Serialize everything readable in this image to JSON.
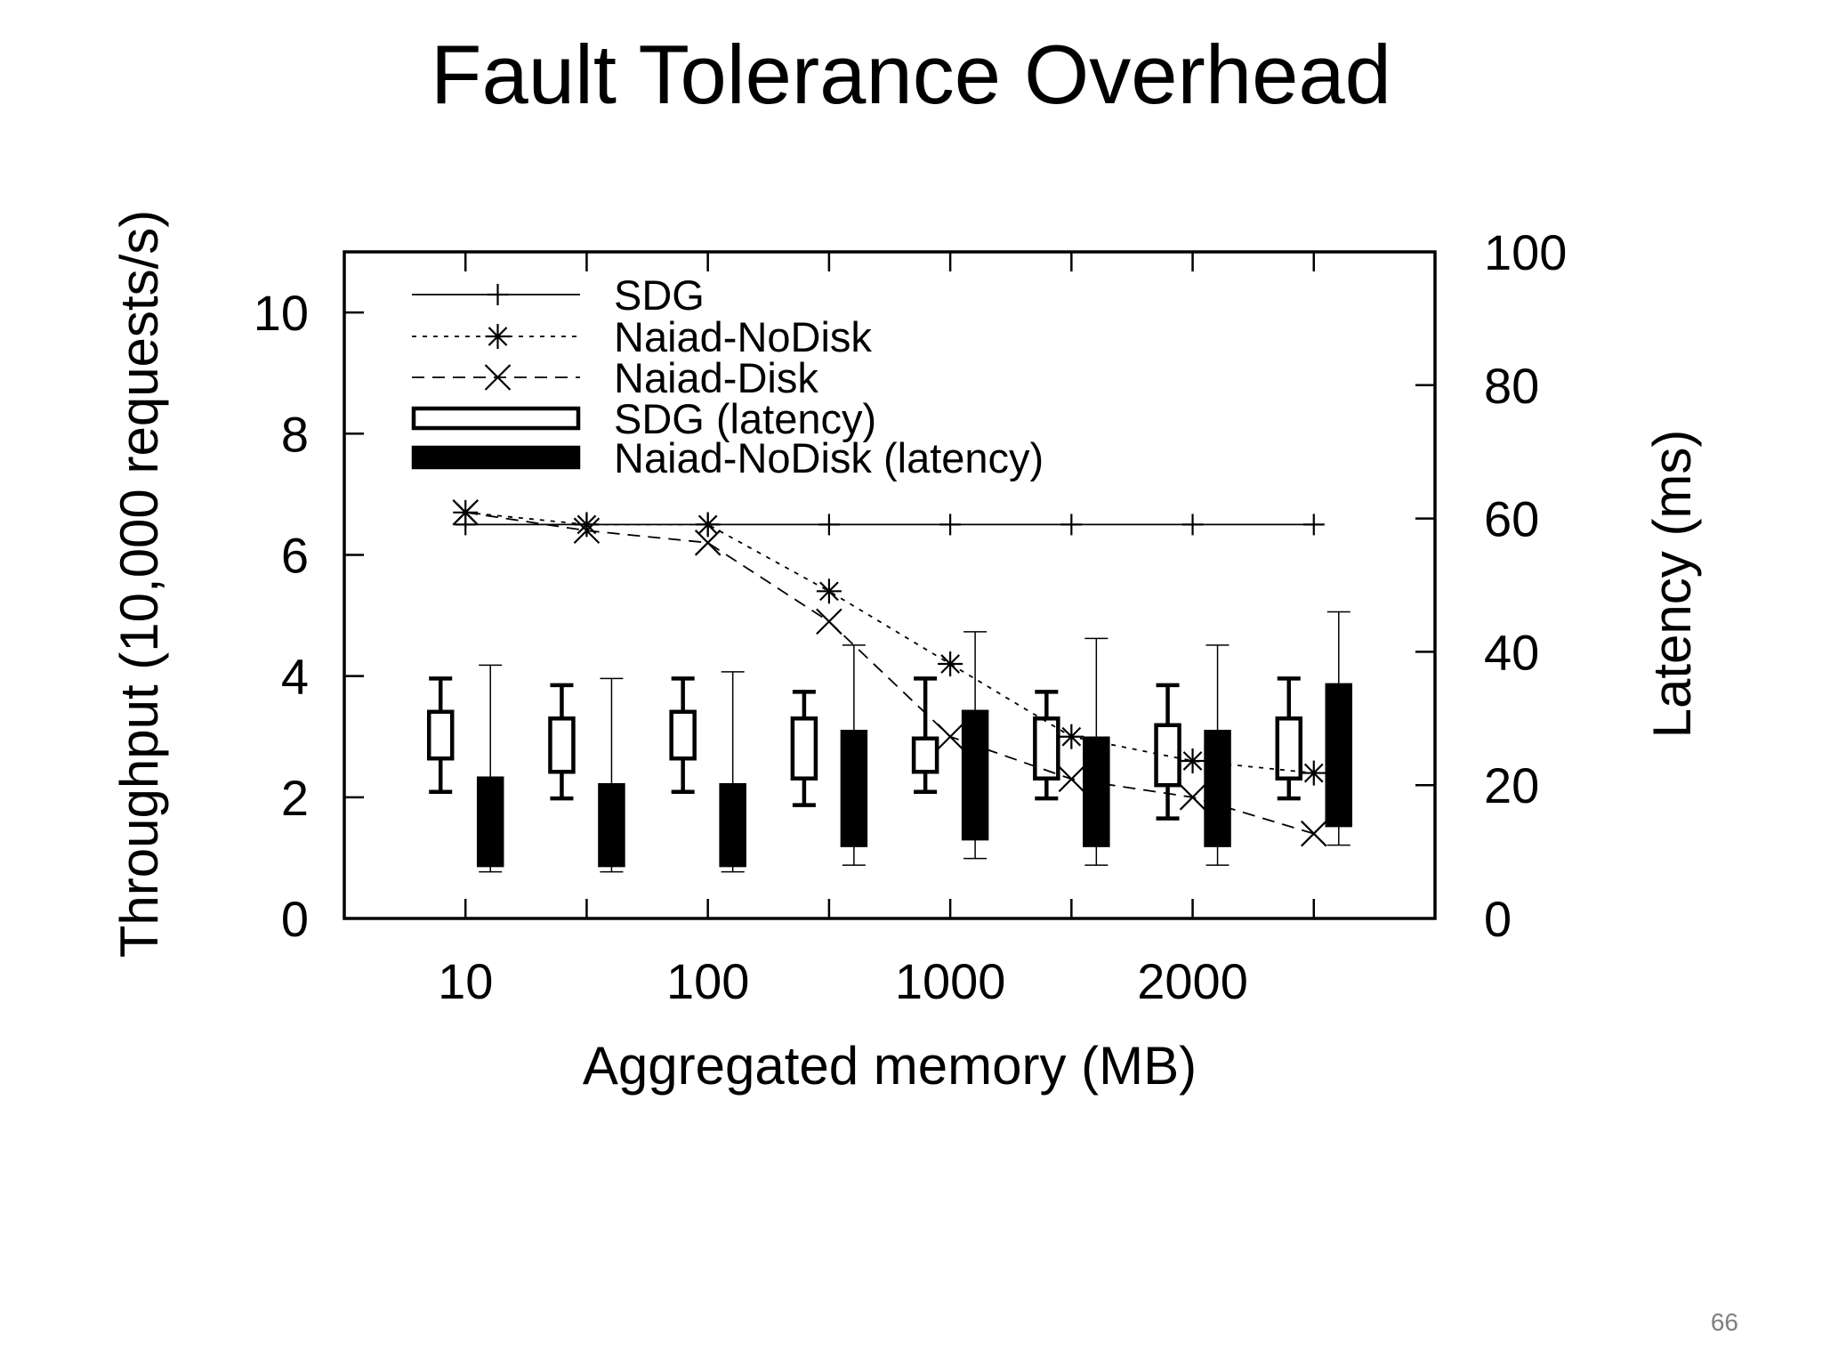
{
  "slide": {
    "title": "Fault Tolerance Overhead",
    "page_number": "66"
  },
  "chart_data": {
    "type": "line",
    "xlabel": "Aggregated memory (MB)",
    "ylabel": "Throughput (10,000 requests/s)",
    "y2label": "Latency (ms)",
    "ylim": [
      0,
      11
    ],
    "y2lim": [
      0,
      100
    ],
    "yticks": [
      0,
      2,
      4,
      6,
      8,
      10
    ],
    "y2ticks": [
      0,
      20,
      40,
      60,
      80,
      100
    ],
    "xlim": [
      0,
      9
    ],
    "x_positions": [
      1,
      2,
      3,
      4,
      5,
      6,
      7,
      8
    ],
    "x_tick_labels": [
      {
        "pos": 1,
        "label": "10"
      },
      {
        "pos": 3,
        "label": "100"
      },
      {
        "pos": 5,
        "label": "1000"
      },
      {
        "pos": 7,
        "label": "2000"
      }
    ],
    "legend": {
      "position": "top-left"
    },
    "series": [
      {
        "name": "SDG",
        "marker": "plus",
        "style": "solid",
        "axis": "y",
        "values": [
          6.5,
          6.5,
          6.5,
          6.5,
          6.5,
          6.5,
          6.5,
          6.5
        ]
      },
      {
        "name": "Naiad-NoDisk",
        "marker": "star",
        "style": "dotted",
        "axis": "y",
        "values": [
          6.7,
          6.5,
          6.5,
          5.4,
          4.2,
          3.0,
          2.6,
          2.4
        ]
      },
      {
        "name": "Naiad-Disk",
        "marker": "x",
        "style": "dashed",
        "axis": "y",
        "values": [
          6.7,
          6.4,
          6.2,
          4.9,
          3.0,
          2.3,
          2.0,
          1.4
        ]
      }
    ],
    "boxes": [
      {
        "name": "SDG (latency)",
        "fill": "#ffffff",
        "axis": "y2",
        "data": [
          {
            "pos": 1,
            "min": 19,
            "q1": 24,
            "q3": 31,
            "max": 36
          },
          {
            "pos": 2,
            "min": 18,
            "q1": 22,
            "q3": 30,
            "max": 35
          },
          {
            "pos": 3,
            "min": 19,
            "q1": 24,
            "q3": 31,
            "max": 36
          },
          {
            "pos": 4,
            "min": 17,
            "q1": 21,
            "q3": 30,
            "max": 34
          },
          {
            "pos": 5,
            "min": 19,
            "q1": 22,
            "q3": 27,
            "max": 36
          },
          {
            "pos": 6,
            "min": 18,
            "q1": 21,
            "q3": 30,
            "max": 34
          },
          {
            "pos": 7,
            "min": 15,
            "q1": 20,
            "q3": 29,
            "max": 35
          },
          {
            "pos": 8,
            "min": 18,
            "q1": 21,
            "q3": 30,
            "max": 36
          }
        ]
      },
      {
        "name": "Naiad-NoDisk (latency)",
        "fill": "#000000",
        "axis": "y2",
        "data": [
          {
            "pos": 1,
            "min": 7,
            "q1": 8,
            "q3": 21,
            "max": 38
          },
          {
            "pos": 2,
            "min": 7,
            "q1": 8,
            "q3": 20,
            "max": 36
          },
          {
            "pos": 3,
            "min": 7,
            "q1": 8,
            "q3": 20,
            "max": 37
          },
          {
            "pos": 4,
            "min": 8,
            "q1": 11,
            "q3": 28,
            "max": 41
          },
          {
            "pos": 5,
            "min": 9,
            "q1": 12,
            "q3": 31,
            "max": 43
          },
          {
            "pos": 6,
            "min": 8,
            "q1": 11,
            "q3": 27,
            "max": 42
          },
          {
            "pos": 7,
            "min": 8,
            "q1": 11,
            "q3": 28,
            "max": 41
          },
          {
            "pos": 8,
            "min": 11,
            "q1": 14,
            "q3": 35,
            "max": 46
          }
        ]
      }
    ]
  }
}
